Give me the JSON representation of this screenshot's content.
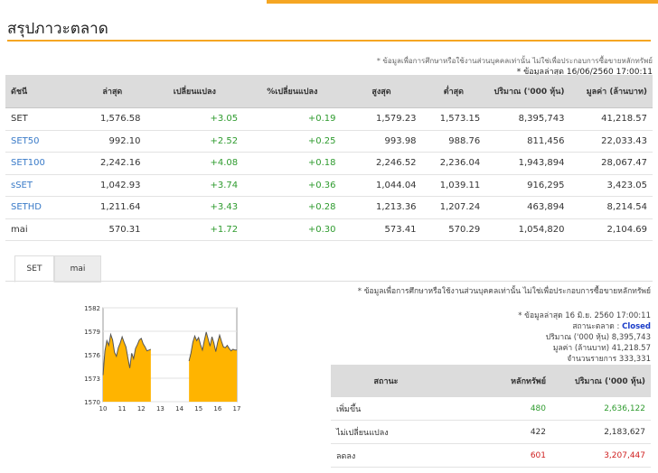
{
  "page": {
    "title": "สรุปภาวะตลาด"
  },
  "notes": {
    "top_disclaimer": "* ข้อมูลเพื่อการศึกษาหรือใช้งานส่วนบุคคลเท่านั้น ไม่ใช่เพื่อประกอบการซื้อขายหลักทรัพย์",
    "top_updated": "* ข้อมูลล่าสุด 16/06/2560 17:00:11"
  },
  "market_table": {
    "headers": [
      "ดัชนี",
      "ล่าสุด",
      "เปลี่ยนแปลง",
      "%เปลี่ยนแปลง",
      "สูงสุด",
      "ต่ำสุด",
      "ปริมาณ ('000 หุ้น)",
      "มูลค่า (ล้านบาท)"
    ],
    "rows": [
      [
        "SET",
        "1,576.58",
        "+3.05",
        "+0.19",
        "1,579.23",
        "1,573.15",
        "8,395,743",
        "41,218.57"
      ],
      [
        "SET50",
        "992.10",
        "+2.52",
        "+0.25",
        "993.98",
        "988.76",
        "811,456",
        "22,033.43"
      ],
      [
        "SET100",
        "2,242.16",
        "+4.08",
        "+0.18",
        "2,246.52",
        "2,236.04",
        "1,943,894",
        "28,067.47"
      ],
      [
        "sSET",
        "1,042.93",
        "+3.74",
        "+0.36",
        "1,044.04",
        "1,039.11",
        "916,295",
        "3,423.05"
      ],
      [
        "SETHD",
        "1,211.64",
        "+3.43",
        "+0.28",
        "1,213.36",
        "1,207.24",
        "463,894",
        "8,214.54"
      ],
      [
        "mai",
        "570.31",
        "+1.72",
        "+0.30",
        "573.41",
        "570.29",
        "1,054,820",
        "2,104.69"
      ]
    ]
  },
  "tabs": [
    "SET",
    "mai"
  ],
  "chart_data": {
    "type": "area",
    "x_ticks": [
      "10",
      "11",
      "12",
      "13",
      "14",
      "15",
      "16",
      "17"
    ],
    "y_ticks": [
      "1582",
      "1579",
      "1576",
      "1573",
      "1570"
    ],
    "ylim": [
      1570,
      1582
    ],
    "x": [
      10.0,
      10.1,
      10.2,
      10.3,
      10.4,
      10.5,
      10.6,
      10.7,
      10.8,
      10.9,
      11.0,
      11.1,
      11.2,
      11.3,
      11.4,
      11.5,
      11.6,
      11.7,
      11.8,
      11.9,
      12.0,
      12.1,
      12.2,
      12.3,
      12.5,
      14.5,
      14.6,
      14.7,
      14.8,
      14.9,
      15.0,
      15.1,
      15.2,
      15.3,
      15.4,
      15.5,
      15.6,
      15.7,
      15.8,
      15.9,
      16.0,
      16.1,
      16.2,
      16.3,
      16.4,
      16.5,
      16.6,
      16.7,
      16.8,
      16.9,
      17.0
    ],
    "values": [
      1573.4,
      1576.5,
      1577.8,
      1577.2,
      1578.6,
      1577.9,
      1576.3,
      1575.8,
      1576.9,
      1577.5,
      1578.3,
      1577.6,
      1577.0,
      1575.6,
      1574.3,
      1576.2,
      1575.5,
      1576.8,
      1577.3,
      1577.9,
      1578.1,
      1577.4,
      1577.0,
      1576.5,
      1576.7,
      1575.2,
      1576.2,
      1577.6,
      1578.4,
      1577.8,
      1578.2,
      1577.3,
      1576.6,
      1577.8,
      1578.9,
      1578.0,
      1577.1,
      1578.3,
      1577.5,
      1576.4,
      1577.6,
      1578.5,
      1577.7,
      1577.0,
      1576.9,
      1577.2,
      1576.8,
      1576.5,
      1576.7,
      1576.6,
      1576.6
    ]
  },
  "summary": {
    "disclaimer": "* ข้อมูลเพื่อการศึกษาหรือใช้งานส่วนบุคคลเท่านั้น ไม่ใช่เพื่อประกอบการซื้อขายหลักทรัพย์",
    "updated": "* ข้อมูลล่าสุด 16 มิ.ย. 2560 17:00:11",
    "status_label": "สถานะตลาด :",
    "status_value": "Closed",
    "volume": "ปริมาณ ('000 หุ้น) 8,395,743",
    "value": "มูลค่า (ล้านบาท) 41,218.57",
    "trades": "จำนวนรายการ 333,331"
  },
  "stat_table": {
    "headers": [
      "สถานะ",
      "หลักทรัพย์",
      "ปริมาณ ('000 หุ้น)"
    ],
    "rows": [
      [
        "เพิ่มขึ้น",
        "480",
        "2,636,122"
      ],
      [
        "ไม่เปลี่ยนแปลง",
        "422",
        "2,183,627"
      ],
      [
        "ลดลง",
        "601",
        "3,207,447"
      ]
    ]
  },
  "colors": {
    "accent": "#f5a623",
    "up": "#2e9b2e",
    "down": "#d02020",
    "link": "#3a7bc8",
    "closed": "#1a3cc8",
    "chart_fill": "#ffb400"
  }
}
